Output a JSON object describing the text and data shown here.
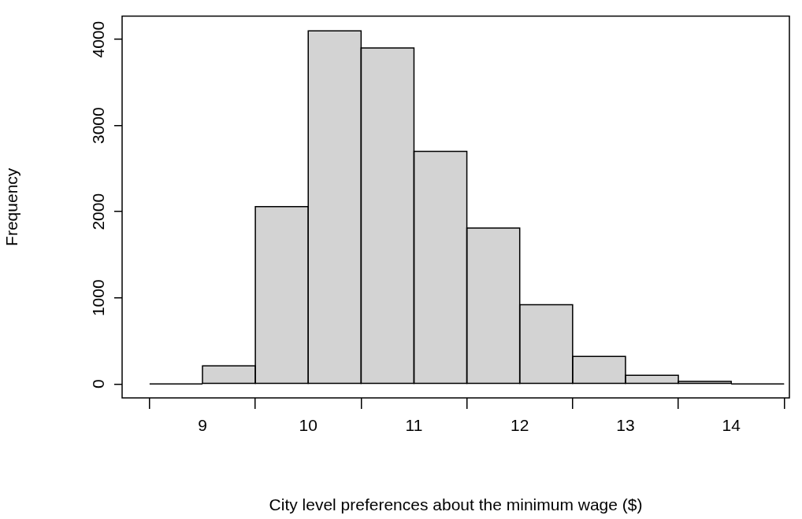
{
  "chart_data": {
    "type": "histogram",
    "xlabel": "City level preferences about the minimum wage ($)",
    "ylabel": "Frequency",
    "bins": [
      8.5,
      9,
      9.5,
      10,
      10.5,
      11,
      11.5,
      12,
      12.5,
      13,
      13.5,
      14,
      14.5
    ],
    "values": [
      0,
      210,
      2060,
      4100,
      3900,
      2700,
      1810,
      920,
      320,
      100,
      30,
      0
    ],
    "color": "#d3d3d3",
    "xlim": [
      8.24,
      14.55
    ],
    "xticks": [
      9,
      10,
      11,
      12,
      13,
      14
    ],
    "ylim": [
      -162,
      4270
    ],
    "yticks": [
      0,
      1000,
      2000,
      3000,
      4000
    ],
    "grid": false,
    "legend": false
  }
}
